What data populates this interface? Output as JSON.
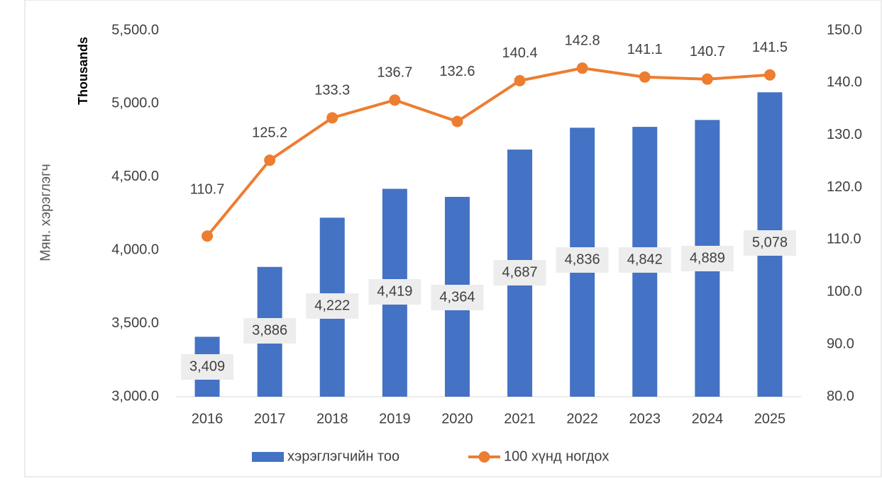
{
  "chart_data": {
    "type": "bar_line",
    "y_axis_label": "Мян. хэрэглэгч",
    "y_axis_units": "Thousands",
    "categories": [
      "2016",
      "2017",
      "2018",
      "2019",
      "2020",
      "2021",
      "2022",
      "2023",
      "2024",
      "2025"
    ],
    "series": [
      {
        "name": "хэрэглэгчийн тоо",
        "type": "bar",
        "color": "#4472c4",
        "values": [
          3409,
          3886,
          4222,
          4419,
          4364,
          4687,
          4836,
          4842,
          4889,
          5078
        ],
        "value_labels": [
          "3,409",
          "3,886",
          "4,222",
          "4,419",
          "4,364",
          "4,687",
          "4,836",
          "4,842",
          "4,889",
          "5,078"
        ]
      },
      {
        "name": "100 хүнд ногдох",
        "type": "line",
        "axis": "y2",
        "color": "#ed7d31",
        "values": [
          110.7,
          125.2,
          133.3,
          136.7,
          132.6,
          140.4,
          142.8,
          141.1,
          140.7,
          141.5
        ],
        "value_labels": [
          "110.7",
          "125.2",
          "133.3",
          "136.7",
          "132.6",
          "140.4",
          "142.8",
          "141.1",
          "140.7",
          "141.5"
        ]
      }
    ],
    "ylim": [
      3000,
      5500
    ],
    "yticks": [
      {
        "value": 3000,
        "label": "3,000.0"
      },
      {
        "value": 3500,
        "label": "3,500.0"
      },
      {
        "value": 4000,
        "label": "4,000.0"
      },
      {
        "value": 4500,
        "label": "4,500.0"
      },
      {
        "value": 5000,
        "label": "5,000.0"
      },
      {
        "value": 5500,
        "label": "5,500.0"
      }
    ],
    "y2lim": [
      80,
      150
    ],
    "y2ticks": [
      {
        "value": 80,
        "label": "80.0"
      },
      {
        "value": 90,
        "label": "90.0"
      },
      {
        "value": 100,
        "label": "100.0"
      },
      {
        "value": 110,
        "label": "110.0"
      },
      {
        "value": 120,
        "label": "120.0"
      },
      {
        "value": 130,
        "label": "130.0"
      },
      {
        "value": 140,
        "label": "140.0"
      },
      {
        "value": 150,
        "label": "150.0"
      }
    ],
    "legend": "bottom"
  }
}
